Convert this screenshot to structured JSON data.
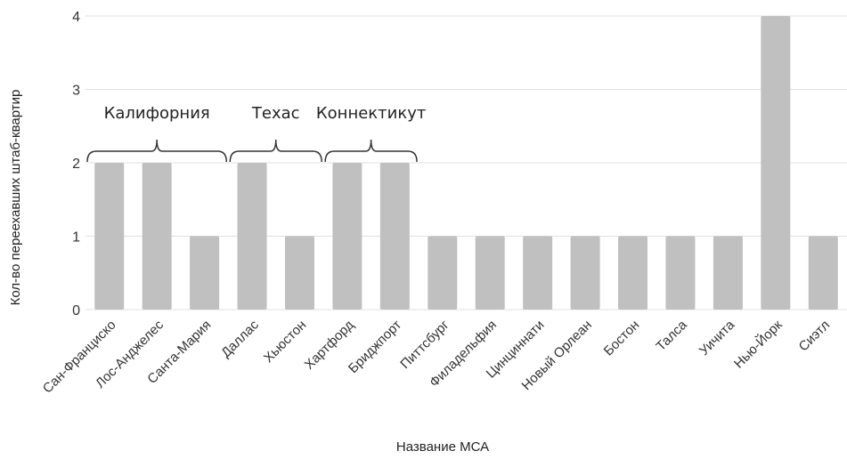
{
  "chart_data": {
    "type": "bar",
    "title": "",
    "xlabel": "Название МСА",
    "ylabel": "Кол-во переехавших штаб-квартир",
    "ylim": [
      0,
      4
    ],
    "yticks": [
      0,
      1,
      2,
      3,
      4
    ],
    "grid": true,
    "categories": [
      "Сан-Франциско",
      "Лос-Анджелес",
      "Санта-Мария",
      "Даллас",
      "Хьюстон",
      "Хартфорд",
      "Бриджпорт",
      "Питтсбург",
      "Филадельфия",
      "Цинциннати",
      "Новый Орлеан",
      "Бостон",
      "Талса",
      "Уичита",
      "Нью-Йорк",
      "Сиэтл"
    ],
    "values": [
      2,
      2,
      1,
      2,
      1,
      2,
      2,
      1,
      1,
      1,
      1,
      1,
      1,
      1,
      4,
      1
    ],
    "bar_color": "#c0c0c0",
    "grid_color": "#e0e0e0",
    "annotations": [
      {
        "label": "Калифорния",
        "from_index": 0,
        "to_index": 2
      },
      {
        "label": "Техас",
        "from_index": 3,
        "to_index": 4
      },
      {
        "label": "Коннектикут",
        "from_index": 5,
        "to_index": 6
      }
    ]
  }
}
